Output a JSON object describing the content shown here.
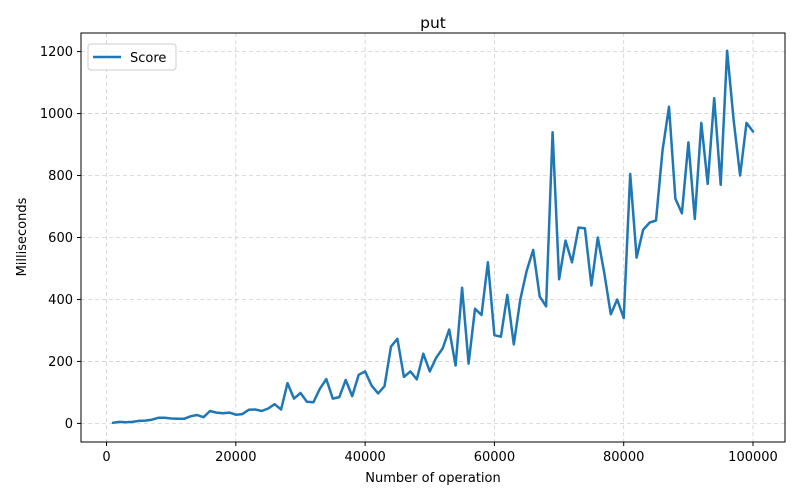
{
  "chart_data": {
    "type": "line",
    "title": "put",
    "xlabel": "Number of operation",
    "ylabel": "Milliseconds",
    "xlim": [
      -3950,
      104950
    ],
    "ylim": [
      -60,
      1260
    ],
    "xticks": [
      0,
      20000,
      40000,
      60000,
      80000,
      100000
    ],
    "xtick_labels": [
      "0",
      "20000",
      "40000",
      "60000",
      "80000",
      "100000"
    ],
    "yticks": [
      0,
      200,
      400,
      600,
      800,
      1000,
      1200
    ],
    "ytick_labels": [
      "0",
      "200",
      "400",
      "600",
      "800",
      "1000",
      "1200"
    ],
    "grid": true,
    "grid_style": "dashed",
    "legend": "upper left",
    "series": [
      {
        "name": "Score",
        "color": "#1f77b4",
        "x": [
          1000,
          2000,
          3000,
          4000,
          5000,
          6000,
          7000,
          8000,
          9000,
          10000,
          11000,
          12000,
          13000,
          14000,
          15000,
          16000,
          17000,
          18000,
          19000,
          20000,
          21000,
          22000,
          23000,
          24000,
          25000,
          26000,
          27000,
          28000,
          29000,
          30000,
          31000,
          32000,
          33000,
          34000,
          35000,
          36000,
          37000,
          38000,
          39000,
          40000,
          41000,
          42000,
          43000,
          44000,
          45000,
          46000,
          47000,
          48000,
          49000,
          50000,
          51000,
          52000,
          53000,
          54000,
          55000,
          56000,
          57000,
          58000,
          59000,
          60000,
          61000,
          62000,
          63000,
          64000,
          65000,
          66000,
          67000,
          68000,
          69000,
          70000,
          71000,
          72000,
          73000,
          74000,
          75000,
          76000,
          77000,
          78000,
          79000,
          80000,
          81000,
          82000,
          83000,
          84000,
          85000,
          86000,
          87000,
          88000,
          89000,
          90000,
          91000,
          92000,
          93000,
          94000,
          95000,
          96000,
          97000,
          98000,
          99000,
          100000
        ],
        "values": [
          2,
          5,
          4,
          5,
          8,
          9,
          12,
          18,
          18,
          16,
          15,
          15,
          23,
          27,
          20,
          40,
          35,
          33,
          35,
          28,
          30,
          44,
          45,
          40,
          48,
          62,
          45,
          130,
          80,
          98,
          70,
          68,
          112,
          143,
          80,
          85,
          140,
          88,
          157,
          168,
          122,
          97,
          120,
          248,
          273,
          150,
          168,
          142,
          225,
          168,
          212,
          242,
          303,
          187,
          438,
          193,
          370,
          350,
          520,
          285,
          280,
          415,
          255,
          400,
          493,
          560,
          410,
          378,
          940,
          465,
          590,
          520,
          632,
          630,
          445,
          600,
          485,
          352,
          400,
          340,
          805,
          535,
          625,
          648,
          655,
          880,
          1022,
          725,
          678,
          907,
          660,
          970,
          773,
          1050,
          770,
          1203,
          980,
          800,
          970,
          942
        ]
      }
    ]
  }
}
